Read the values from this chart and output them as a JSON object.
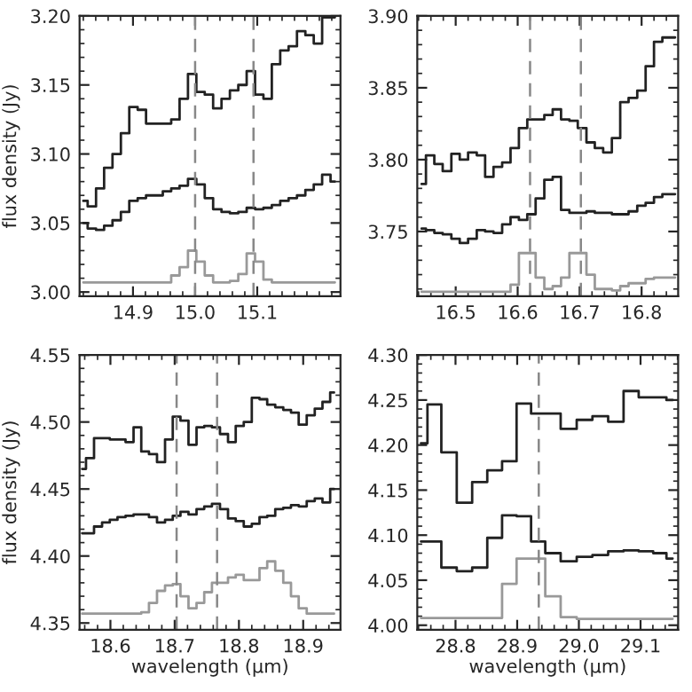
{
  "chart_data": [
    {
      "type": "step",
      "ylabel": "flux density (Jy)",
      "xlim": [
        14.814,
        15.234
      ],
      "ylim": [
        2.997,
        3.2
      ],
      "xticks": [
        14.9,
        {
          "value": 15.0,
          "label": "15.0"
        },
        15.1
      ],
      "yticks": [
        {
          "value": 3.0,
          "label": "3.00"
        },
        {
          "value": 3.05,
          "label": "3.05"
        },
        {
          "value": 3.1,
          "label": "3.10"
        },
        {
          "value": 3.15,
          "label": "3.15"
        },
        {
          "value": 3.2,
          "label": "3.20"
        }
      ],
      "x": [
        14.82,
        14.834,
        14.847,
        14.86,
        14.874,
        14.887,
        14.901,
        14.914,
        14.928,
        14.941,
        14.955,
        14.968,
        14.982,
        14.995,
        15.009,
        15.022,
        15.036,
        15.049,
        15.063,
        15.076,
        15.09,
        15.103,
        15.117,
        15.13,
        15.144,
        15.157,
        15.171,
        15.184,
        15.198,
        15.211,
        15.225
      ],
      "series": [
        {
          "color": "#222222",
          "values": [
            3.066,
            3.062,
            3.075,
            3.09,
            3.1,
            3.115,
            3.134,
            3.132,
            3.122,
            3.122,
            3.122,
            3.125,
            3.14,
            3.158,
            3.145,
            3.143,
            3.133,
            3.14,
            3.146,
            3.15,
            3.16,
            3.143,
            3.14,
            3.165,
            3.175,
            3.178,
            3.189,
            3.186,
            3.18,
            3.199,
            3.199
          ]
        },
        {
          "color": "#222222",
          "values": [
            3.05,
            3.046,
            3.045,
            3.048,
            3.052,
            3.058,
            3.066,
            3.068,
            3.07,
            3.07,
            3.073,
            3.075,
            3.077,
            3.082,
            3.078,
            3.068,
            3.06,
            3.058,
            3.057,
            3.058,
            3.061,
            3.06,
            3.061,
            3.063,
            3.066,
            3.068,
            3.07,
            3.074,
            3.078,
            3.085,
            3.08
          ]
        },
        {
          "color": "#999999",
          "values": [
            3.007,
            3.007,
            3.007,
            3.007,
            3.007,
            3.007,
            3.007,
            3.007,
            3.007,
            3.007,
            3.007,
            3.012,
            3.018,
            3.03,
            3.022,
            3.012,
            3.007,
            3.007,
            3.008,
            3.013,
            3.028,
            3.022,
            3.009,
            3.007,
            3.007,
            3.007,
            3.007,
            3.007,
            3.007,
            3.007,
            3.007
          ]
        }
      ],
      "ref_lines": [
        {
          "axis": "x",
          "value": 15.0,
          "color": "#888888",
          "line_style": "dashed"
        },
        {
          "axis": "x",
          "value": 15.094,
          "color": "#888888",
          "line_style": "dashed"
        }
      ]
    },
    {
      "type": "step",
      "xlim": [
        16.438,
        16.859
      ],
      "ylim": [
        3.705,
        3.9
      ],
      "xticks": [
        16.5,
        16.6,
        16.7,
        16.8
      ],
      "yticks": [
        {
          "value": 3.75,
          "label": "3.75"
        },
        {
          "value": 3.8,
          "label": "3.80"
        },
        {
          "value": 3.85,
          "label": "3.85"
        },
        {
          "value": 3.9,
          "label": "3.90"
        }
      ],
      "x": [
        16.445,
        16.459,
        16.472,
        16.486,
        16.5,
        16.513,
        16.527,
        16.541,
        16.554,
        16.568,
        16.582,
        16.595,
        16.609,
        16.622,
        16.636,
        16.65,
        16.663,
        16.677,
        16.69,
        16.704,
        16.718,
        16.731,
        16.745,
        16.759,
        16.772,
        16.786,
        16.8,
        16.813,
        16.827,
        16.84,
        16.854
      ],
      "series": [
        {
          "color": "#222222",
          "values": [
            3.783,
            3.803,
            3.797,
            3.792,
            3.804,
            3.8,
            3.805,
            3.803,
            3.788,
            3.795,
            3.798,
            3.808,
            3.822,
            3.828,
            3.828,
            3.831,
            3.835,
            3.828,
            3.827,
            3.822,
            3.812,
            3.808,
            3.805,
            3.815,
            3.84,
            3.843,
            3.848,
            3.865,
            3.882,
            3.885,
            3.885
          ]
        },
        {
          "color": "#222222",
          "values": [
            3.752,
            3.751,
            3.749,
            3.748,
            3.745,
            3.742,
            3.745,
            3.751,
            3.75,
            3.749,
            3.755,
            3.76,
            3.758,
            3.762,
            3.773,
            3.786,
            3.788,
            3.765,
            3.763,
            3.763,
            3.764,
            3.763,
            3.763,
            3.762,
            3.762,
            3.764,
            3.768,
            3.77,
            3.774,
            3.776,
            3.776
          ]
        },
        {
          "color": "#999999",
          "values": [
            3.708,
            3.708,
            3.708,
            3.708,
            3.708,
            3.708,
            3.708,
            3.708,
            3.708,
            3.708,
            3.708,
            3.713,
            3.735,
            3.735,
            3.718,
            3.71,
            3.712,
            3.718,
            3.735,
            3.735,
            3.72,
            3.71,
            3.71,
            3.709,
            3.712,
            3.714,
            3.714,
            3.717,
            3.718,
            3.718,
            3.718
          ]
        }
      ],
      "ref_lines": [
        {
          "axis": "x",
          "value": 16.62,
          "color": "#888888",
          "line_style": "dashed"
        },
        {
          "axis": "x",
          "value": 16.702,
          "color": "#888888",
          "line_style": "dashed"
        }
      ]
    },
    {
      "type": "step",
      "xlabel": "wavelength (μm)",
      "ylabel": "flux density (Jy)",
      "xlim": [
        18.552,
        18.958
      ],
      "ylim": [
        4.345,
        4.55
      ],
      "xticks": [
        18.6,
        18.7,
        18.8,
        18.9
      ],
      "yticks": [
        {
          "value": 4.35,
          "label": "4.35"
        },
        {
          "value": 4.4,
          "label": "4.40"
        },
        {
          "value": 4.45,
          "label": "4.45"
        },
        {
          "value": 4.5,
          "label": "4.50"
        },
        {
          "value": 4.55,
          "label": "4.55"
        }
      ],
      "x": [
        18.556,
        18.568,
        18.581,
        18.593,
        18.605,
        18.617,
        18.63,
        18.642,
        18.654,
        18.666,
        18.679,
        18.691,
        18.703,
        18.715,
        18.728,
        18.74,
        18.752,
        18.764,
        18.777,
        18.789,
        18.801,
        18.814,
        18.826,
        18.838,
        18.85,
        18.863,
        18.875,
        18.887,
        18.899,
        18.912,
        18.924,
        18.936,
        18.948
      ],
      "series": [
        {
          "color": "#222222",
          "values": [
            4.465,
            4.473,
            4.488,
            4.488,
            4.487,
            4.487,
            4.485,
            4.496,
            4.478,
            4.476,
            4.47,
            4.487,
            4.504,
            4.501,
            4.483,
            4.496,
            4.497,
            4.496,
            4.491,
            4.485,
            4.497,
            4.5,
            4.518,
            4.517,
            4.513,
            4.511,
            4.509,
            4.507,
            4.498,
            4.505,
            4.51,
            4.515,
            4.522
          ]
        },
        {
          "color": "#222222",
          "values": [
            4.417,
            4.417,
            4.422,
            4.425,
            4.427,
            4.429,
            4.43,
            4.431,
            4.431,
            4.429,
            4.425,
            4.427,
            4.43,
            4.433,
            4.431,
            4.435,
            4.437,
            4.439,
            4.435,
            4.428,
            4.426,
            4.422,
            4.424,
            4.429,
            4.43,
            4.435,
            4.436,
            4.438,
            4.437,
            4.441,
            4.443,
            4.44,
            4.45
          ]
        },
        {
          "color": "#999999",
          "values": [
            4.357,
            4.357,
            4.357,
            4.357,
            4.357,
            4.357,
            4.357,
            4.357,
            4.358,
            4.365,
            4.374,
            4.378,
            4.379,
            4.37,
            4.361,
            4.365,
            4.373,
            4.38,
            4.38,
            4.384,
            4.386,
            4.382,
            4.382,
            4.391,
            4.396,
            4.389,
            4.38,
            4.37,
            4.361,
            4.357,
            4.357,
            4.357,
            4.357
          ]
        }
      ],
      "ref_lines": [
        {
          "axis": "x",
          "value": 18.703,
          "color": "#888888",
          "line_style": "dashed"
        },
        {
          "axis": "x",
          "value": 18.766,
          "color": "#888888",
          "line_style": "dashed"
        }
      ]
    },
    {
      "type": "step",
      "xlabel": "wavelength (μm)",
      "xlim": [
        28.738,
        29.161
      ],
      "ylim": [
        3.995,
        4.3
      ],
      "xticks": [
        28.8,
        28.9,
        {
          "value": 29.0,
          "label": "29.0"
        },
        29.1
      ],
      "yticks": [
        {
          "value": 4.0,
          "label": "4.00"
        },
        {
          "value": 4.05,
          "label": "4.05"
        },
        {
          "value": 4.1,
          "label": "4.10"
        },
        {
          "value": 4.15,
          "label": "4.15"
        },
        {
          "value": 4.2,
          "label": "4.20"
        },
        {
          "value": 4.25,
          "label": "4.25"
        },
        {
          "value": 4.3,
          "label": "4.30"
        }
      ],
      "x": [
        28.744,
        28.765,
        28.789,
        28.815,
        28.839,
        28.864,
        28.887,
        28.911,
        28.934,
        28.957,
        28.984,
        29.009,
        29.035,
        29.06,
        29.085,
        29.109,
        29.132,
        29.152
      ],
      "series": [
        {
          "color": "#222222",
          "values": [
            4.202,
            4.245,
            4.192,
            4.136,
            4.159,
            4.172,
            4.182,
            4.246,
            4.235,
            4.235,
            4.218,
            4.228,
            4.232,
            4.226,
            4.26,
            4.253,
            4.253,
            4.25
          ]
        },
        {
          "color": "#222222",
          "values": [
            4.093,
            4.093,
            4.064,
            4.06,
            4.064,
            4.097,
            4.122,
            4.121,
            4.093,
            4.08,
            4.071,
            4.076,
            4.078,
            4.082,
            4.083,
            4.082,
            4.08,
            4.074
          ]
        },
        {
          "color": "#999999",
          "values": [
            4.008,
            4.008,
            4.008,
            4.008,
            4.008,
            4.008,
            4.046,
            4.074,
            4.074,
            4.032,
            4.009,
            4.007,
            4.007,
            4.007,
            4.007,
            4.007,
            4.007,
            4.007
          ]
        }
      ],
      "ref_lines": [
        {
          "axis": "x",
          "value": 28.935,
          "color": "#888888",
          "line_style": "dashed"
        }
      ]
    }
  ]
}
